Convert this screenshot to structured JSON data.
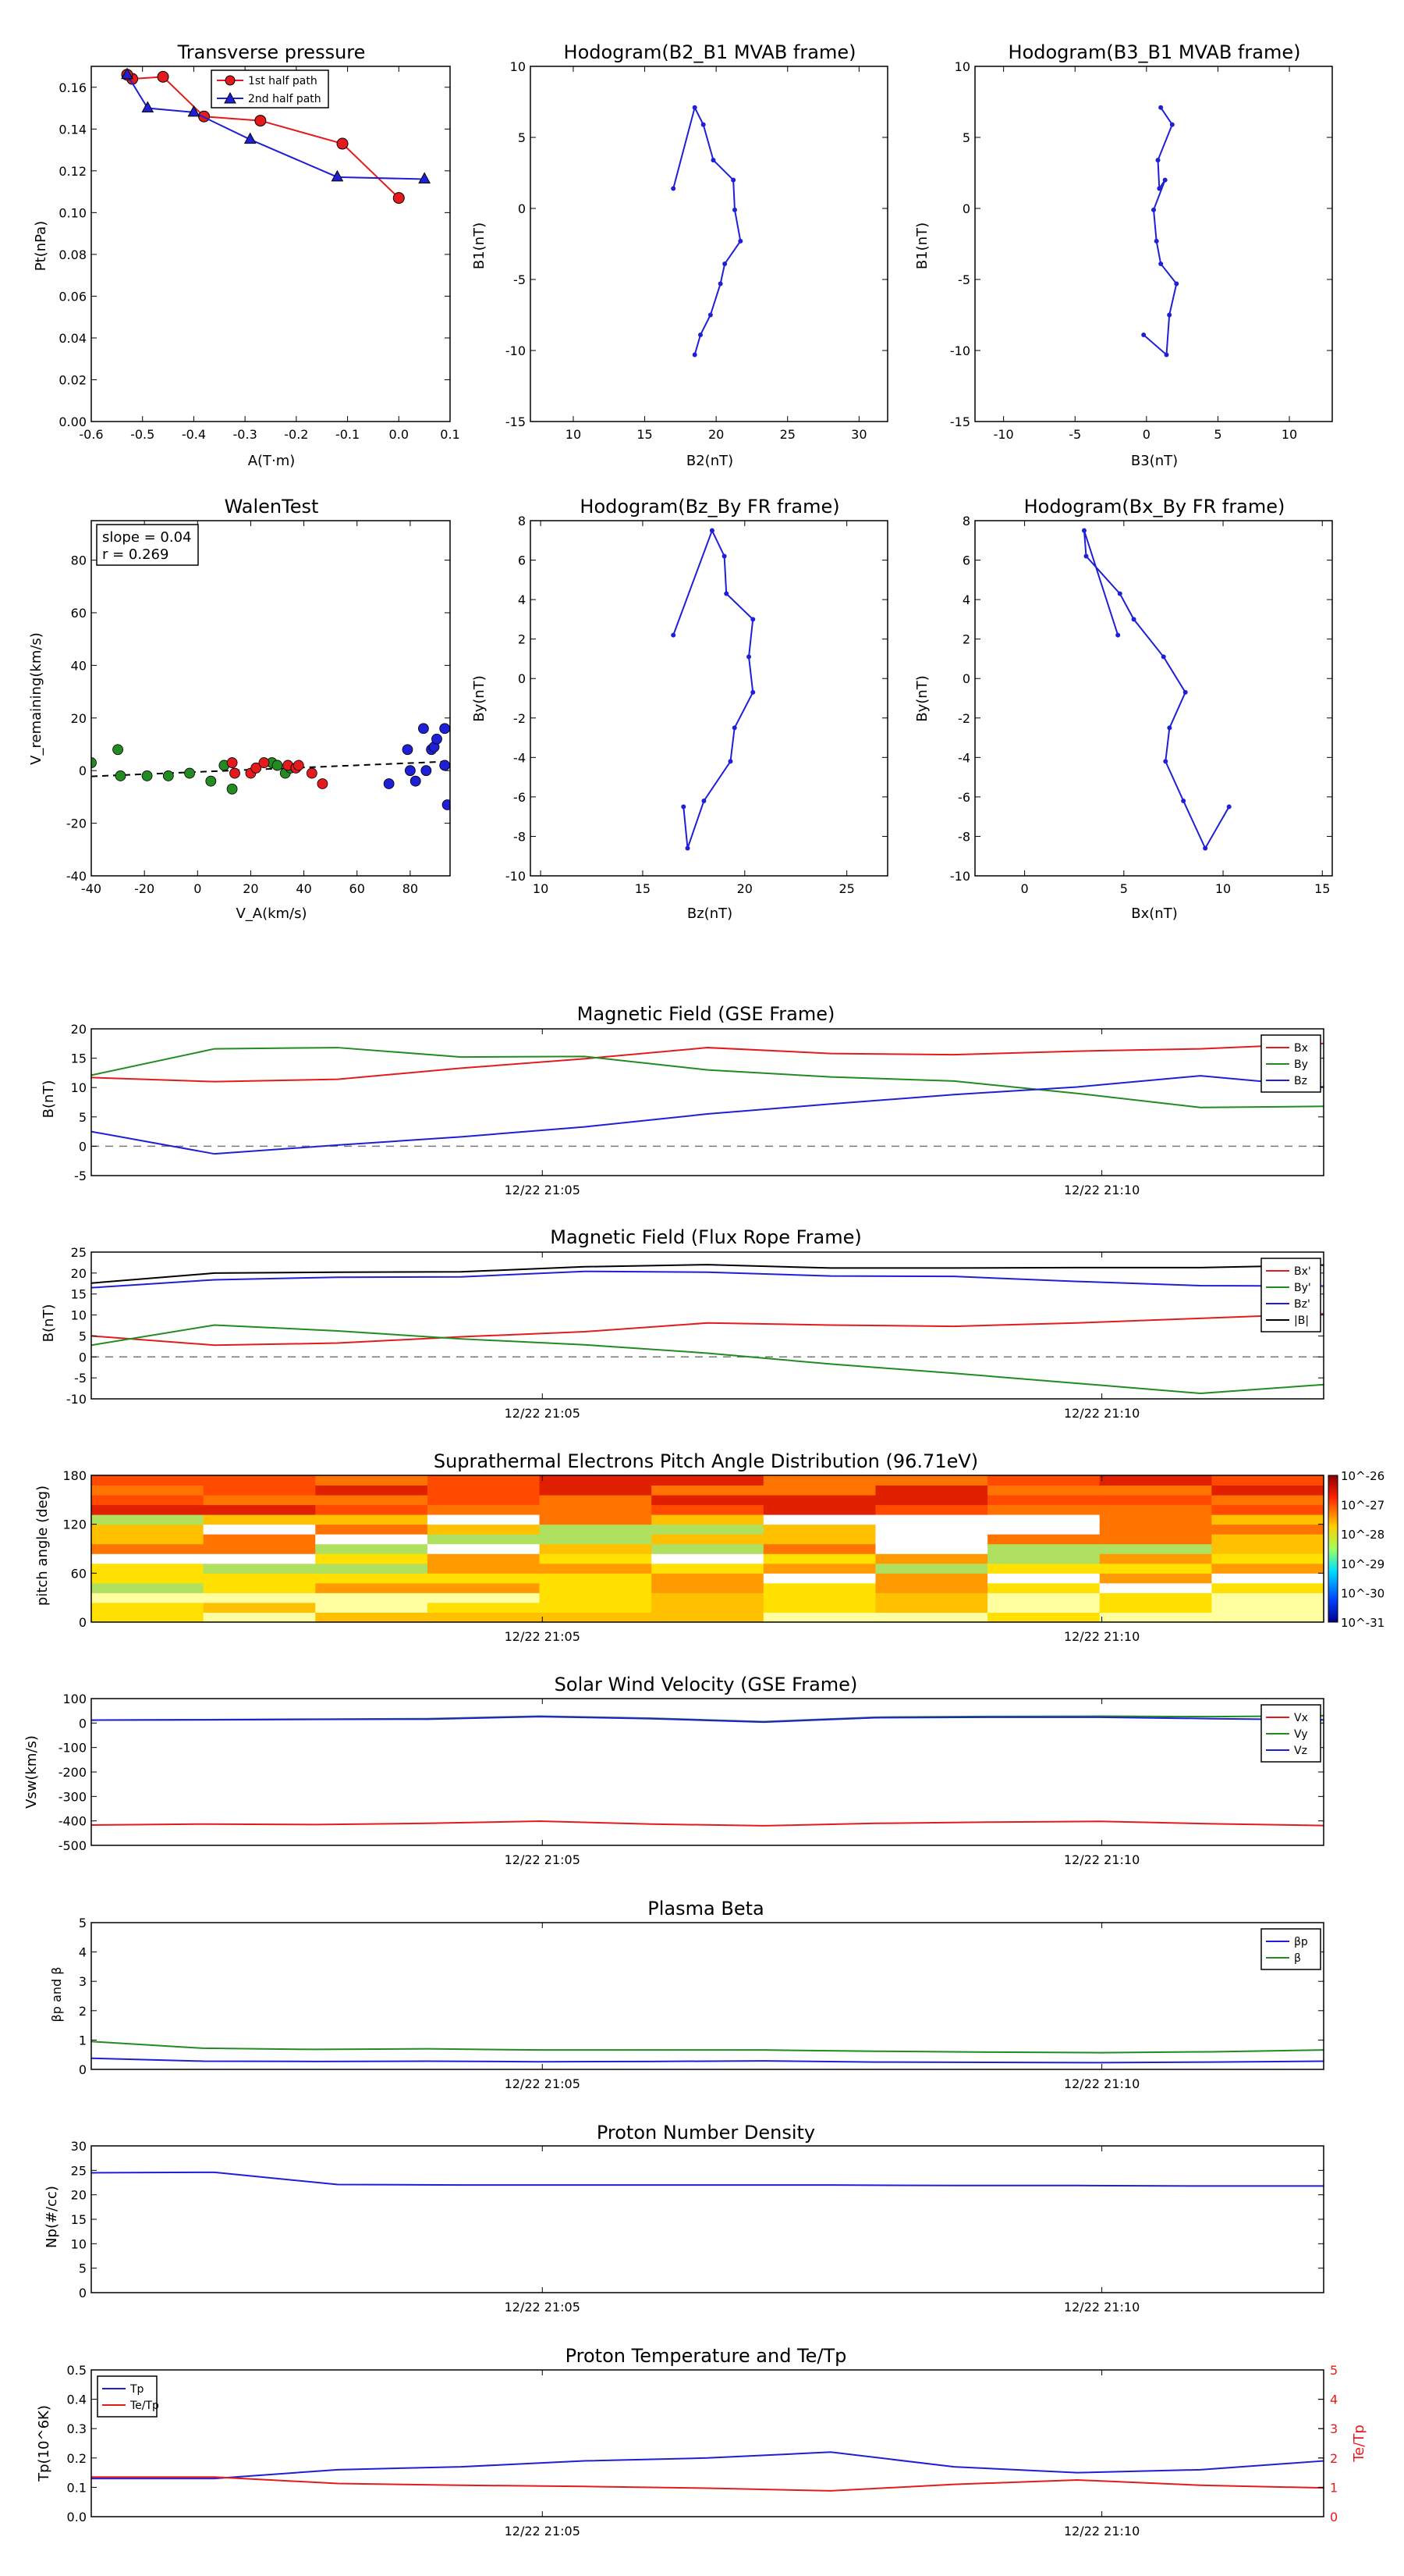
{
  "panels": {
    "transverse_pressure": {
      "title": "Transverse pressure",
      "xlabel": "A(T·m)",
      "ylabel": "Pt(nPa)",
      "legend": [
        "1st half path",
        "2nd half path"
      ]
    },
    "hodo_b2b1": {
      "title": "Hodogram(B2_B1 MVAB frame)",
      "xlabel": "B2(nT)",
      "ylabel": "B1(nT)"
    },
    "hodo_b3b1": {
      "title": "Hodogram(B3_B1 MVAB frame)",
      "xlabel": "B3(nT)",
      "ylabel": "B1(nT)"
    },
    "walen": {
      "title": "WalenTest",
      "xlabel": "V_A(km/s)",
      "ylabel": "V_remaining(km/s)",
      "annotation": [
        "slope = 0.04",
        "r = 0.269"
      ]
    },
    "hodo_bzby": {
      "title": "Hodogram(Bz_By FR frame)",
      "xlabel": "Bz(nT)",
      "ylabel": "By(nT)"
    },
    "hodo_bxby": {
      "title": "Hodogram(Bx_By FR frame)",
      "xlabel": "Bx(nT)",
      "ylabel": "By(nT)"
    },
    "mag_gse": {
      "title": "Magnetic Field (GSE Frame)",
      "ylabel": "B(nT)"
    },
    "mag_fr": {
      "title": "Magnetic Field (Flux Rope Frame)",
      "ylabel": "B(nT)"
    },
    "pad": {
      "title": "Suprathermal Electrons Pitch Angle Distribution (96.71eV)",
      "ylabel": "pitch angle (deg)"
    },
    "vsw": {
      "title": "Solar Wind Velocity (GSE Frame)",
      "ylabel": "Vsw(km/s)"
    },
    "beta": {
      "title": "Plasma Beta",
      "ylabel": "βp and β"
    },
    "np": {
      "title": "Proton Number Density",
      "ylabel": "Np(#/cc)"
    },
    "temp": {
      "title": "Proton Temperature and Te/Tp",
      "ylabel": "Tp(10^6K)",
      "ylabel2": "Te/Tp"
    }
  },
  "time_ticks": [
    "12/22 21:05",
    "12/22 21:10"
  ],
  "colors": {
    "red": "#e41a1c",
    "green": "#228b22",
    "blue": "#1f1fd6",
    "black": "#000000"
  },
  "chart_data": [
    {
      "id": "transverse_pressure",
      "type": "line",
      "xlim": [
        -0.6,
        0.1
      ],
      "ylim": [
        0,
        0.17
      ],
      "xticks": [
        -0.6,
        -0.5,
        -0.4,
        -0.3,
        -0.2,
        -0.1,
        0.0,
        0.1
      ],
      "yticks": [
        0.0,
        0.02,
        0.04,
        0.06,
        0.08,
        0.1,
        0.12,
        0.14,
        0.16
      ],
      "legend_position": "top-center",
      "series": [
        {
          "name": "1st half path",
          "marker": "circle",
          "color": "#e41a1c",
          "x": [
            0.0,
            -0.11,
            -0.27,
            -0.38,
            -0.46,
            -0.52,
            -0.53
          ],
          "y": [
            0.107,
            0.133,
            0.144,
            0.146,
            0.165,
            0.164,
            0.166
          ]
        },
        {
          "name": "2nd half path",
          "marker": "triangle",
          "color": "#1f1fd6",
          "x": [
            -0.53,
            -0.49,
            -0.4,
            -0.29,
            -0.12,
            0.05
          ],
          "y": [
            0.166,
            0.15,
            0.148,
            0.135,
            0.117,
            0.116
          ]
        }
      ]
    },
    {
      "id": "hodo_b2b1",
      "type": "line",
      "xlim": [
        7,
        32
      ],
      "ylim": [
        -15,
        10
      ],
      "xticks": [
        10,
        15,
        20,
        25,
        30
      ],
      "yticks": [
        -15,
        -10,
        -5,
        0,
        5,
        10
      ],
      "series": [
        {
          "color": "#1f1fd6",
          "marker": "dot",
          "x": [
            17.0,
            18.5,
            19.1,
            19.8,
            21.2,
            21.3,
            21.7,
            20.6,
            20.3,
            19.6,
            18.9,
            18.5
          ],
          "y": [
            1.4,
            7.1,
            5.9,
            3.4,
            2.0,
            -0.1,
            -2.3,
            -3.9,
            -5.3,
            -7.5,
            -8.9,
            -10.3
          ]
        }
      ]
    },
    {
      "id": "hodo_b3b1",
      "type": "line",
      "xlim": [
        -12,
        13
      ],
      "ylim": [
        -15,
        10
      ],
      "xticks": [
        -10,
        -5,
        0,
        5,
        10
      ],
      "yticks": [
        -15,
        -10,
        -5,
        0,
        5,
        10
      ],
      "series": [
        {
          "color": "#1f1fd6",
          "marker": "dot",
          "x": [
            -0.2,
            1.4,
            1.6,
            2.1,
            1.0,
            0.7,
            0.5,
            1.3,
            0.9,
            0.8,
            1.8,
            1.0
          ],
          "y": [
            -8.9,
            -10.3,
            -7.5,
            -5.3,
            -3.9,
            -2.3,
            -0.1,
            2.0,
            1.4,
            3.4,
            5.9,
            7.1
          ]
        }
      ]
    },
    {
      "id": "walen",
      "type": "scatter",
      "xlim": [
        -40,
        95
      ],
      "ylim": [
        -40,
        95
      ],
      "xticks": [
        -40,
        -20,
        0,
        20,
        40,
        60,
        80
      ],
      "yticks": [
        -40,
        -20,
        0,
        20,
        40,
        60,
        80
      ],
      "fit_line": {
        "x": [
          -40,
          95
        ],
        "y": [
          -2.2,
          3.5
        ]
      },
      "series": [
        {
          "color": "#228b22",
          "x": [
            -40,
            -30,
            -29,
            -19,
            -11,
            -3,
            5,
            10,
            13,
            28,
            30,
            33,
            35
          ],
          "y": [
            3,
            8,
            -2,
            -2,
            -2,
            -1,
            -4,
            2,
            -7,
            3,
            2,
            -1,
            1
          ]
        },
        {
          "color": "#e41a1c",
          "x": [
            13,
            14,
            20,
            22,
            25,
            34,
            37,
            38,
            43,
            47
          ],
          "y": [
            3,
            -1,
            -1,
            1,
            3,
            2,
            1,
            2,
            -1,
            -5
          ]
        },
        {
          "color": "#1f1fd6",
          "x": [
            72,
            79,
            80,
            82,
            85,
            86,
            88,
            89,
            90,
            93,
            93,
            94
          ],
          "y": [
            -5,
            8,
            0,
            -4,
            16,
            0,
            8,
            9,
            12,
            16,
            2,
            -13
          ]
        }
      ]
    },
    {
      "id": "hodo_bzby",
      "type": "line",
      "xlim": [
        9.5,
        27
      ],
      "ylim": [
        -10,
        8
      ],
      "xticks": [
        10,
        15,
        20,
        25
      ],
      "yticks": [
        -10,
        -8,
        -6,
        -4,
        -2,
        0,
        2,
        4,
        6,
        8
      ],
      "series": [
        {
          "color": "#1f1fd6",
          "marker": "dot",
          "x": [
            16.5,
            18.4,
            19.0,
            19.1,
            20.4,
            20.2,
            20.4,
            19.5,
            19.3,
            18.0,
            17.2,
            17.0
          ],
          "y": [
            2.2,
            7.5,
            6.2,
            4.3,
            3.0,
            1.1,
            -0.7,
            -2.5,
            -4.2,
            -6.2,
            -8.6,
            -6.5
          ]
        }
      ]
    },
    {
      "id": "hodo_bxby",
      "type": "line",
      "xlim": [
        -2.5,
        15.5
      ],
      "ylim": [
        -10,
        8
      ],
      "xticks": [
        0,
        5,
        10,
        15
      ],
      "yticks": [
        -10,
        -8,
        -6,
        -4,
        -2,
        0,
        2,
        4,
        6,
        8
      ],
      "series": [
        {
          "color": "#1f1fd6",
          "marker": "dot",
          "x": [
            10.3,
            9.1,
            8.0,
            7.1,
            7.3,
            8.1,
            7.0,
            5.5,
            4.8,
            3.1,
            3.0,
            4.7
          ],
          "y": [
            -6.5,
            -8.6,
            -6.2,
            -4.2,
            -2.5,
            -0.7,
            1.1,
            3.0,
            4.3,
            6.2,
            7.5,
            2.2
          ]
        }
      ]
    },
    {
      "id": "mag_gse",
      "type": "line",
      "ylim": [
        -5,
        20
      ],
      "yticks": [
        -5,
        0,
        5,
        10,
        15,
        20
      ],
      "zero_line": true,
      "legend_position": "top-right",
      "series": [
        {
          "name": "Bx",
          "color": "#e41a1c",
          "values": [
            11.7,
            11.0,
            11.4,
            13.3,
            14.9,
            16.8,
            15.8,
            15.6,
            16.2,
            16.6,
            17.5
          ]
        },
        {
          "name": "By",
          "color": "#228b22",
          "values": [
            12.1,
            16.6,
            16.8,
            15.2,
            15.3,
            13.0,
            11.8,
            11.1,
            9.0,
            6.6,
            6.8
          ]
        },
        {
          "name": "Bz",
          "color": "#1f1fd6",
          "values": [
            2.5,
            -1.3,
            0.2,
            1.6,
            3.3,
            5.5,
            7.2,
            8.8,
            10.1,
            12.0,
            10.1
          ]
        }
      ]
    },
    {
      "id": "mag_fr",
      "type": "line",
      "ylim": [
        -10,
        25
      ],
      "yticks": [
        -10,
        -5,
        0,
        5,
        10,
        15,
        20,
        25
      ],
      "zero_line": true,
      "legend_position": "top-right",
      "series": [
        {
          "name": "Bx'",
          "color": "#e41a1c",
          "values": [
            5.0,
            2.8,
            3.3,
            4.8,
            6.0,
            8.1,
            7.6,
            7.3,
            8.1,
            9.2,
            10.3
          ]
        },
        {
          "name": "By'",
          "color": "#228b22",
          "values": [
            2.8,
            7.6,
            6.2,
            4.3,
            2.9,
            0.9,
            -1.7,
            -3.9,
            -6.3,
            -8.7,
            -6.6
          ]
        },
        {
          "name": "Bz'",
          "color": "#1f1fd6",
          "values": [
            16.5,
            18.4,
            19.0,
            19.1,
            20.4,
            20.2,
            19.3,
            19.2,
            18.0,
            17.0,
            16.9
          ]
        },
        {
          "name": "|B|",
          "color": "#000000",
          "values": [
            17.6,
            20.0,
            20.2,
            20.3,
            21.5,
            22.0,
            21.2,
            21.2,
            21.3,
            21.3,
            21.9
          ]
        }
      ]
    },
    {
      "id": "pad",
      "type": "heatmap",
      "ylim": [
        0,
        180
      ],
      "yticks": [
        0,
        60,
        120,
        180
      ],
      "colorbar_ticks": [
        "10^-26",
        "10^-27",
        "10^-28",
        "10^-29",
        "10^-30",
        "10^-31"
      ],
      "columns": 11,
      "rows": 15
    },
    {
      "id": "vsw",
      "type": "line",
      "ylim": [
        -500,
        100
      ],
      "yticks": [
        -500,
        -400,
        -300,
        -200,
        -100,
        0,
        100
      ],
      "legend_position": "top-right",
      "series": [
        {
          "name": "Vx",
          "color": "#e41a1c",
          "values": [
            -417,
            -413,
            -415,
            -410,
            -401,
            -413,
            -420,
            -410,
            -405,
            -402,
            -412,
            -419
          ]
        },
        {
          "name": "Vy",
          "color": "#228b22",
          "values": [
            12,
            14,
            16,
            18,
            28,
            20,
            6,
            24,
            27,
            28,
            26,
            30
          ]
        },
        {
          "name": "Vz",
          "color": "#1f1fd6",
          "values": [
            12,
            13,
            15,
            16,
            26,
            18,
            4,
            22,
            24,
            24,
            18,
            13
          ]
        }
      ]
    },
    {
      "id": "beta",
      "type": "line",
      "ylim": [
        0,
        5
      ],
      "yticks": [
        0,
        1,
        2,
        3,
        4,
        5
      ],
      "legend_position": "top-right",
      "series": [
        {
          "name": "βp",
          "color": "#1f1fd6",
          "values": [
            0.38,
            0.28,
            0.27,
            0.28,
            0.26,
            0.27,
            0.29,
            0.25,
            0.24,
            0.23,
            0.25,
            0.28
          ]
        },
        {
          "name": "β",
          "color": "#228b22",
          "values": [
            0.95,
            0.72,
            0.68,
            0.7,
            0.66,
            0.66,
            0.66,
            0.62,
            0.59,
            0.57,
            0.6,
            0.66
          ]
        }
      ]
    },
    {
      "id": "np",
      "type": "line",
      "ylim": [
        0,
        30
      ],
      "yticks": [
        0,
        5,
        10,
        15,
        20,
        25,
        30
      ],
      "series": [
        {
          "color": "#1f1fd6",
          "values": [
            24.5,
            24.6,
            22.1,
            22.0,
            22.0,
            22.0,
            22.0,
            21.9,
            21.9,
            21.8,
            21.8
          ]
        }
      ]
    },
    {
      "id": "temp",
      "type": "line",
      "ylim": [
        0,
        0.5
      ],
      "yticks": [
        0.0,
        0.1,
        0.2,
        0.3,
        0.4,
        0.5
      ],
      "ylim2": [
        0,
        5
      ],
      "yticks2": [
        0,
        1,
        2,
        3,
        4,
        5
      ],
      "legend_position": "top-left",
      "series": [
        {
          "name": "Tp",
          "color": "#1f1fd6",
          "axis": "left",
          "values": [
            0.13,
            0.13,
            0.16,
            0.17,
            0.19,
            0.2,
            0.22,
            0.17,
            0.15,
            0.16,
            0.19
          ]
        },
        {
          "name": "Te/Tp",
          "color": "#e41a1c",
          "axis": "right",
          "values": [
            1.35,
            1.35,
            1.13,
            1.07,
            1.03,
            0.97,
            0.88,
            1.1,
            1.25,
            1.07,
            0.98
          ]
        }
      ]
    }
  ]
}
